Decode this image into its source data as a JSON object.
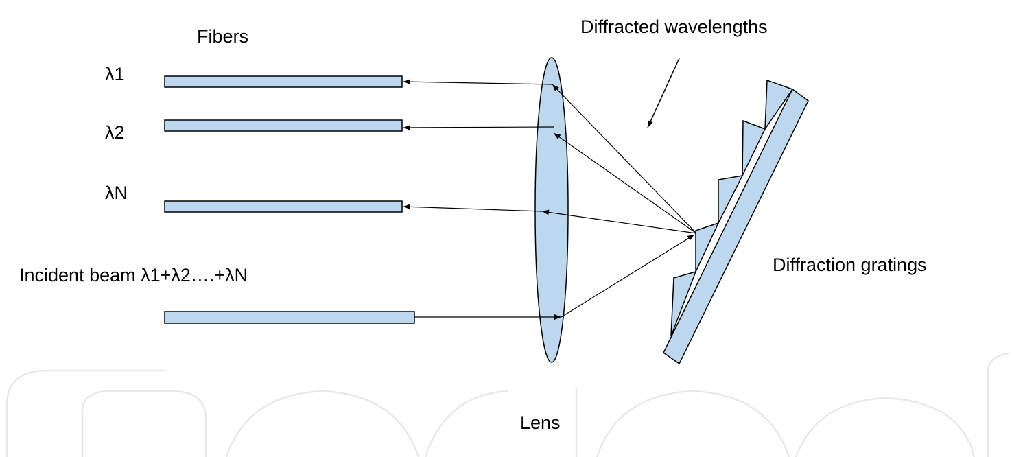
{
  "labels": {
    "fibers": "Fibers",
    "lambda1": "λ1",
    "lambda2": "λ2",
    "lambdaN": "λN",
    "incident_beam": "Incident beam λ1+λ2….+λN",
    "diffracted_wavelengths": "Diffracted wavelengths",
    "diffraction_gratings": "Diffraction gratings",
    "lens": "Lens"
  },
  "colors": {
    "component_fill": "#BDD7EE",
    "outline": "#000000",
    "watermark": "#E8E8E8",
    "background": "#FFFFFF"
  }
}
